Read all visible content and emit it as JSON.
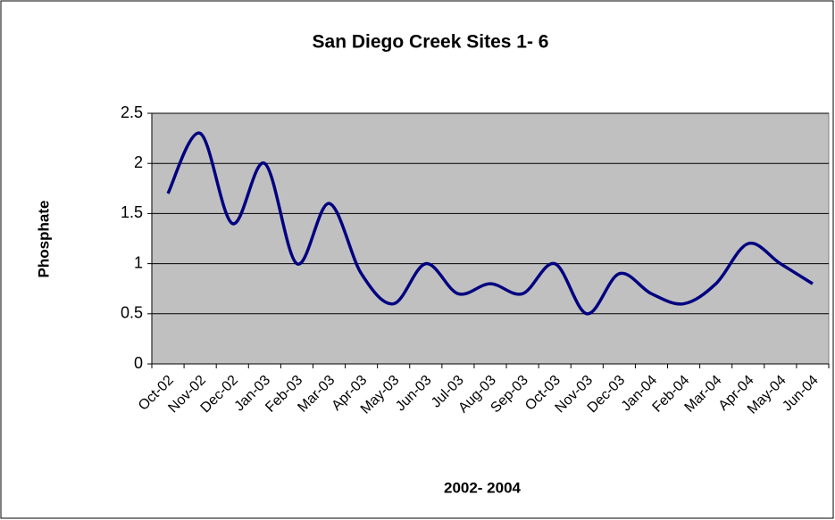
{
  "chart_data": {
    "type": "line",
    "title": "San Diego Creek Sites 1- 6",
    "x_label": "2002- 2004",
    "y_label": "Phosphate",
    "categories": [
      "Oct-02",
      "Nov-02",
      "Dec-02",
      "Jan-03",
      "Feb-03",
      "Mar-03",
      "Apr-03",
      "May-03",
      "Jun-03",
      "Jul-03",
      "Aug-03",
      "Sep-03",
      "Oct-03",
      "Nov-03",
      "Dec-03",
      "Jan-04",
      "Feb-04",
      "Mar-04",
      "Apr-04",
      "May-04",
      "Jun-04"
    ],
    "series": [
      {
        "name": "Phosphate",
        "color": "#000080",
        "values": [
          1.7,
          2.3,
          1.4,
          2.0,
          1.0,
          1.6,
          0.9,
          0.6,
          1.0,
          0.7,
          0.8,
          0.7,
          1.0,
          0.5,
          0.9,
          0.7,
          0.6,
          0.8,
          1.2,
          1.0,
          0.8
        ]
      }
    ],
    "ylim": [
      0,
      2.5
    ],
    "yticks": [
      0,
      0.5,
      1,
      1.5,
      2,
      2.5
    ],
    "grid": true,
    "smooth": true
  }
}
